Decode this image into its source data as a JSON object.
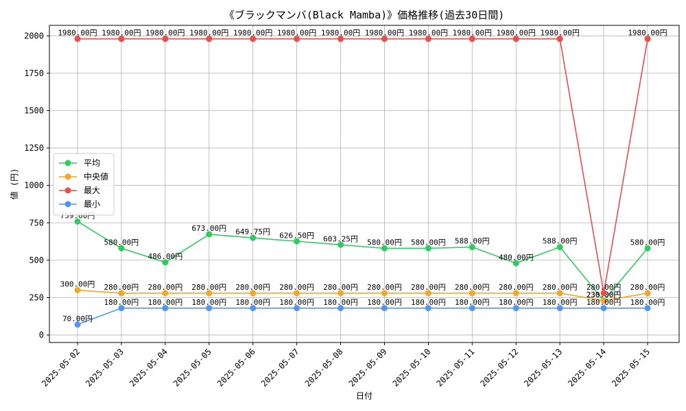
{
  "chart_data": {
    "type": "line",
    "title": "《ブラックマンバ(Black Mamba)》価格推移(過去30日間)",
    "xlabel": "日付",
    "ylabel": "値 (円)",
    "ylim": [
      -50,
      2070
    ],
    "yticks": [
      0,
      250,
      500,
      750,
      1000,
      1250,
      1500,
      1750,
      2000
    ],
    "grid": true,
    "legend_position": "center-left",
    "unit_suffix": "円",
    "categories": [
      "2025-05-02",
      "2025-05-03",
      "2025-05-04",
      "2025-05-05",
      "2025-05-06",
      "2025-05-07",
      "2025-05-08",
      "2025-05-09",
      "2025-05-10",
      "2025-05-11",
      "2025-05-12",
      "2025-05-13",
      "2025-05-14",
      "2025-05-15"
    ],
    "series": [
      {
        "name": "平均",
        "color": "#2ecc5f",
        "values": [
          759.0,
          580.0,
          486.0,
          673.0,
          649.75,
          626.5,
          603.25,
          580.0,
          580.0,
          588.0,
          480.0,
          588.0,
          230.0,
          580.0
        ]
      },
      {
        "name": "中央値",
        "color": "#f5a623",
        "values": [
          300.0,
          280.0,
          280.0,
          280.0,
          280.0,
          280.0,
          280.0,
          280.0,
          280.0,
          280.0,
          280.0,
          280.0,
          230.0,
          280.0
        ]
      },
      {
        "name": "最大",
        "color": "#ee4b4b",
        "values": [
          1980.0,
          1980.0,
          1980.0,
          1980.0,
          1980.0,
          1980.0,
          1980.0,
          1980.0,
          1980.0,
          1980.0,
          1980.0,
          1980.0,
          280.0,
          1980.0
        ]
      },
      {
        "name": "最小",
        "color": "#4d96f2",
        "values": [
          70.0,
          180.0,
          180.0,
          180.0,
          180.0,
          180.0,
          180.0,
          180.0,
          180.0,
          180.0,
          180.0,
          180.0,
          180.0,
          180.0
        ]
      }
    ]
  }
}
